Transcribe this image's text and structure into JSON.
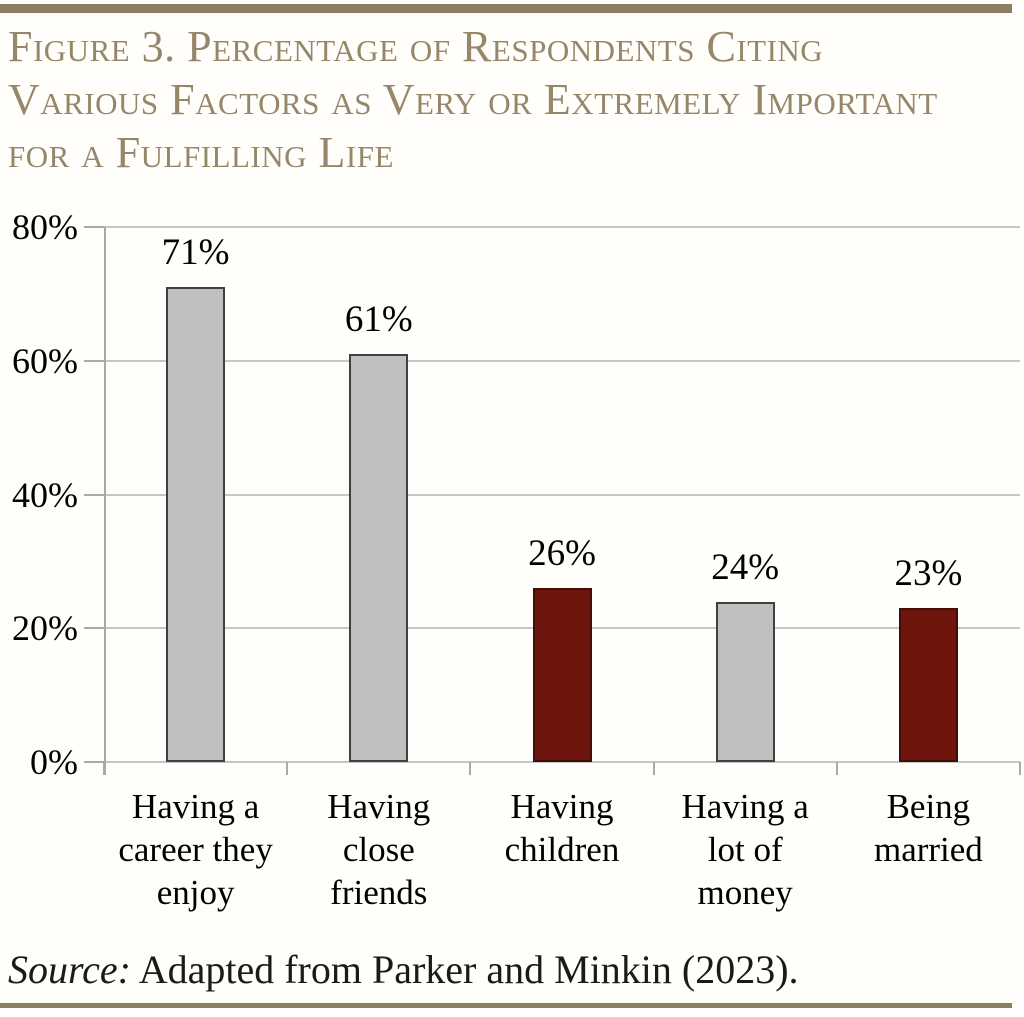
{
  "page": {
    "title_lines": [
      "Figure 3. Percentage of Respondents Citing",
      "Various Factors as Very or Extremely Important",
      "for a Fulfilling Life"
    ],
    "source_label": "Source:",
    "source_rest": " Adapted from Parker and Minkin (2023).",
    "rule_color": "#8C7E62",
    "title_color": "#97876A"
  },
  "chart_data": {
    "type": "bar",
    "title": "Figure 3. Percentage of Respondents Citing Various Factors as Very or Extremely Important for a Fulfilling Life",
    "categories": [
      "Having a career they enjoy",
      "Having close friends",
      "Having children",
      "Having a lot of money",
      "Being married"
    ],
    "category_lines": [
      [
        "Having a",
        "career they",
        "enjoy"
      ],
      [
        "Having",
        "close",
        "friends"
      ],
      [
        "Having",
        "children"
      ],
      [
        "Having a",
        "lot of",
        "money"
      ],
      [
        "Being",
        "married"
      ]
    ],
    "values": [
      71,
      61,
      26,
      24,
      23
    ],
    "value_labels": [
      "71%",
      "61%",
      "26%",
      "24%",
      "23%"
    ],
    "bar_colors": [
      "#BFBFBF",
      "#BFBFBF",
      "#6E150D",
      "#BFBFBF",
      "#6E150D"
    ],
    "bar_border_colors": [
      "#404040",
      "#404040",
      "#440D08",
      "#404040",
      "#440D08"
    ],
    "ylim": [
      0,
      80
    ],
    "yticks": [
      0,
      20,
      40,
      60,
      80
    ],
    "ytick_labels": [
      "0%",
      "20%",
      "40%",
      "60%",
      "80%"
    ],
    "grid": true,
    "legend": "none",
    "gridline_color": "#C6C6C6",
    "axis_color": "#A9A9A9",
    "source": "Source: Adapted from Parker and Minkin (2023)."
  }
}
